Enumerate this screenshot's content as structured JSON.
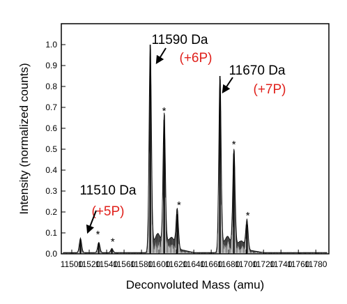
{
  "chart_data": {
    "type": "line",
    "xlabel": "Deconvoluted Mass (amu)",
    "ylabel": "Intensity (normalized counts)",
    "xlim": [
      11488,
      11795
    ],
    "ylim": [
      0,
      1.1
    ],
    "x_ticks": [
      11500,
      11520,
      11540,
      11560,
      11580,
      11600,
      11620,
      11640,
      11660,
      11680,
      11700,
      11720,
      11740,
      11760,
      11780
    ],
    "y_ticks": [
      0.0,
      0.1,
      0.2,
      0.3,
      0.4,
      0.5,
      0.6,
      0.7,
      0.8,
      0.9,
      1.0
    ],
    "y_tick_labels": [
      "0.0",
      "0.1",
      "0.2",
      "0.3",
      "0.4",
      "0.5",
      "0.6",
      "0.7",
      "0.8",
      "0.9",
      "1.0"
    ],
    "grid": false,
    "legend": "none",
    "series": [
      {
        "color": "#000000",
        "peaks": [
          {
            "x": 11510,
            "y": 0.07
          },
          {
            "x": 11531,
            "y": 0.05
          },
          {
            "x": 11546,
            "y": 0.02
          },
          {
            "x": 11590,
            "y": 1.0
          },
          {
            "x": 11606,
            "y": 0.64
          },
          {
            "x": 11621,
            "y": 0.19
          },
          {
            "x": 11670,
            "y": 0.85
          },
          {
            "x": 11686,
            "y": 0.48
          },
          {
            "x": 11701,
            "y": 0.14
          }
        ]
      }
    ],
    "annotations": [
      {
        "mass": "11510 Da",
        "mod": "(+5P)",
        "x": 11510,
        "y": 0.07
      },
      {
        "mass": "11590 Da",
        "mod": "(+6P)",
        "x": 11590,
        "y": 1.0
      },
      {
        "mass": "11670 Da",
        "mod": "(+7P)",
        "x": 11670,
        "y": 0.85
      }
    ],
    "stars": [
      {
        "text": "*",
        "x": 11530,
        "y": 0.07
      },
      {
        "text": "*",
        "x": 11547,
        "y": 0.035
      },
      {
        "text": "*",
        "x": 11606,
        "y": 0.66
      },
      {
        "text": "*",
        "x": 11623,
        "y": 0.21
      },
      {
        "text": "*",
        "x": 11686,
        "y": 0.5
      },
      {
        "text": "*",
        "x": 11702,
        "y": 0.16
      }
    ],
    "colors": {
      "trace": "#000000",
      "modification_label": "#e0201b"
    }
  }
}
